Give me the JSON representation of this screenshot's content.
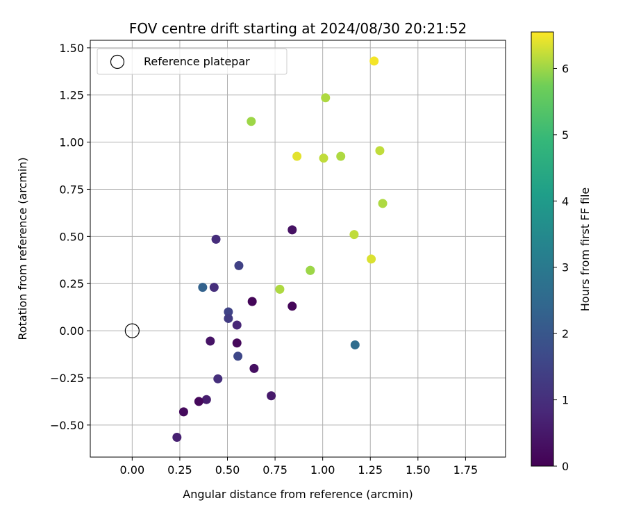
{
  "chart_data": {
    "type": "scatter",
    "title": "FOV centre drift starting at 2024/08/30 20:21:52",
    "xlabel": "Angular distance from reference (arcmin)",
    "ylabel": "Rotation from reference (arcmin)",
    "xlim": [
      -0.22,
      1.96
    ],
    "ylim": [
      -0.67,
      1.54
    ],
    "xticks": [
      0.0,
      0.25,
      0.5,
      0.75,
      1.0,
      1.25,
      1.5,
      1.75
    ],
    "xtick_labels": [
      "0.00",
      "0.25",
      "0.50",
      "0.75",
      "1.00",
      "1.25",
      "1.50",
      "1.75"
    ],
    "yticks": [
      -0.5,
      -0.25,
      0.0,
      0.25,
      0.5,
      0.75,
      1.0,
      1.25,
      1.5
    ],
    "ytick_labels": [
      "−0.50",
      "−0.25",
      "0.00",
      "0.25",
      "0.50",
      "0.75",
      "1.00",
      "1.25",
      "1.50"
    ],
    "grid": true,
    "legend": {
      "placement": "top-left",
      "entries": [
        "Reference platepar"
      ]
    },
    "reference_point": {
      "x": 0.0,
      "y": 0.0,
      "label": "Reference platepar"
    },
    "colorbar": {
      "label": "Hours from first FF file",
      "range": [
        0,
        6.55
      ],
      "ticks": [
        0,
        1,
        2,
        3,
        4,
        5,
        6
      ],
      "tick_labels": [
        "0",
        "1",
        "2",
        "3",
        "4",
        "5",
        "6"
      ],
      "colormap": "viridis"
    },
    "points": [
      {
        "x": 0.84,
        "y": 0.535,
        "hours": 0.35
      },
      {
        "x": 0.44,
        "y": 0.485,
        "hours": 0.95
      },
      {
        "x": 0.56,
        "y": 0.345,
        "hours": 1.45
      },
      {
        "x": 0.37,
        "y": 0.23,
        "hours": 2.3
      },
      {
        "x": 0.43,
        "y": 0.23,
        "hours": 1.0
      },
      {
        "x": 0.63,
        "y": 0.155,
        "hours": 0.1
      },
      {
        "x": 0.84,
        "y": 0.13,
        "hours": 0.1
      },
      {
        "x": 0.505,
        "y": 0.1,
        "hours": 1.5
      },
      {
        "x": 0.505,
        "y": 0.065,
        "hours": 1.3
      },
      {
        "x": 0.55,
        "y": 0.03,
        "hours": 0.8
      },
      {
        "x": 0.41,
        "y": -0.055,
        "hours": 0.4
      },
      {
        "x": 0.55,
        "y": -0.065,
        "hours": 0.15
      },
      {
        "x": 0.555,
        "y": -0.135,
        "hours": 1.6
      },
      {
        "x": 0.64,
        "y": -0.2,
        "hours": 0.3
      },
      {
        "x": 0.45,
        "y": -0.255,
        "hours": 1.0
      },
      {
        "x": 0.73,
        "y": -0.345,
        "hours": 0.5
      },
      {
        "x": 0.39,
        "y": -0.365,
        "hours": 0.6
      },
      {
        "x": 0.35,
        "y": -0.375,
        "hours": 0.15
      },
      {
        "x": 0.27,
        "y": -0.43,
        "hours": 0.2
      },
      {
        "x": 0.235,
        "y": -0.565,
        "hours": 0.65
      },
      {
        "x": 1.17,
        "y": -0.075,
        "hours": 2.6
      },
      {
        "x": 1.27,
        "y": 1.43,
        "hours": 6.5
      },
      {
        "x": 1.015,
        "y": 1.235,
        "hours": 6.1
      },
      {
        "x": 0.625,
        "y": 1.11,
        "hours": 6.0
      },
      {
        "x": 0.865,
        "y": 0.925,
        "hours": 6.4
      },
      {
        "x": 1.005,
        "y": 0.915,
        "hours": 6.2
      },
      {
        "x": 1.095,
        "y": 0.925,
        "hours": 6.1
      },
      {
        "x": 1.3,
        "y": 0.955,
        "hours": 6.2
      },
      {
        "x": 1.315,
        "y": 0.675,
        "hours": 6.1
      },
      {
        "x": 1.165,
        "y": 0.51,
        "hours": 6.2
      },
      {
        "x": 1.255,
        "y": 0.38,
        "hours": 6.35
      },
      {
        "x": 0.775,
        "y": 0.22,
        "hours": 6.1
      },
      {
        "x": 0.935,
        "y": 0.32,
        "hours": 5.6
      },
      {
        "x": 0.935,
        "y": 0.32,
        "hours": 6.0
      }
    ]
  }
}
